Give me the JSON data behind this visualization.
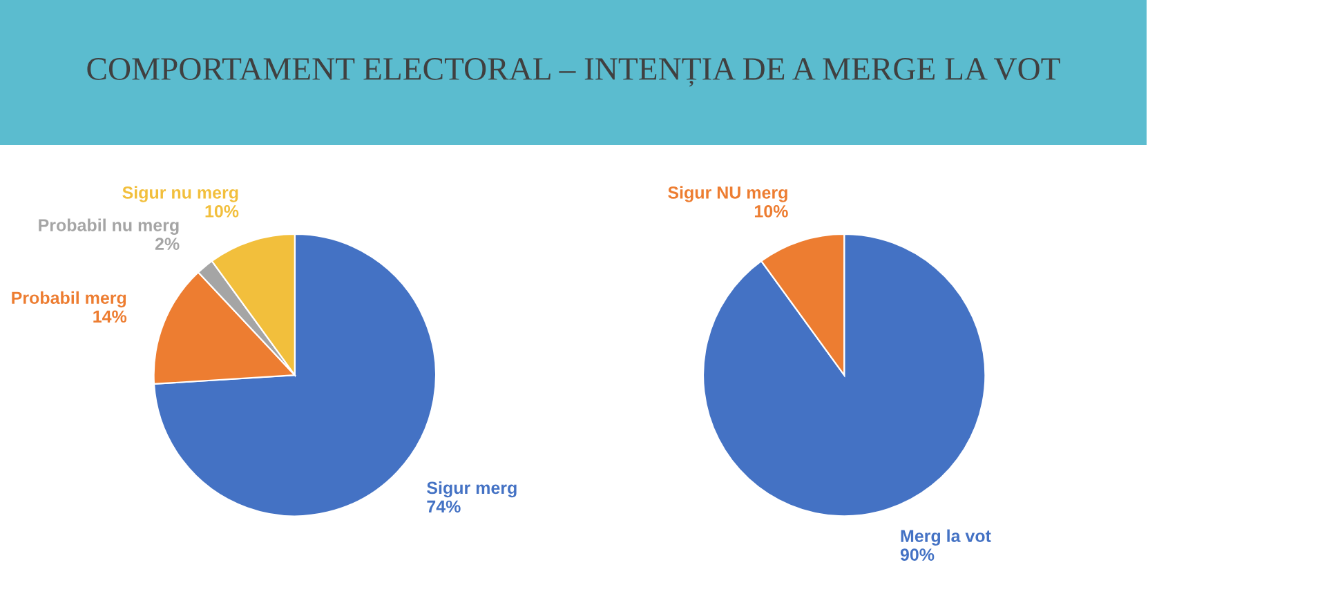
{
  "chart_data": [
    {
      "type": "pie",
      "title": "COMPORTAMENT ELECTORAL – INTENȚIA DE A MERGE LA VOT",
      "categories": [
        "Sigur merg",
        "Probabil merg",
        "Probabil nu merg",
        "Sigur nu merg"
      ],
      "values": [
        74,
        14,
        2,
        10
      ],
      "value_labels": [
        "74%",
        "14%",
        "2%",
        "10%"
      ],
      "colors": [
        "#4472c4",
        "#ed7d31",
        "#a5a5a5",
        "#f2bf3c"
      ]
    },
    {
      "type": "pie",
      "categories": [
        "Merg la vot",
        "Sigur NU merg"
      ],
      "values": [
        90,
        10
      ],
      "value_labels": [
        "90%",
        "10%"
      ],
      "colors": [
        "#4472c4",
        "#ed7d31"
      ]
    }
  ]
}
